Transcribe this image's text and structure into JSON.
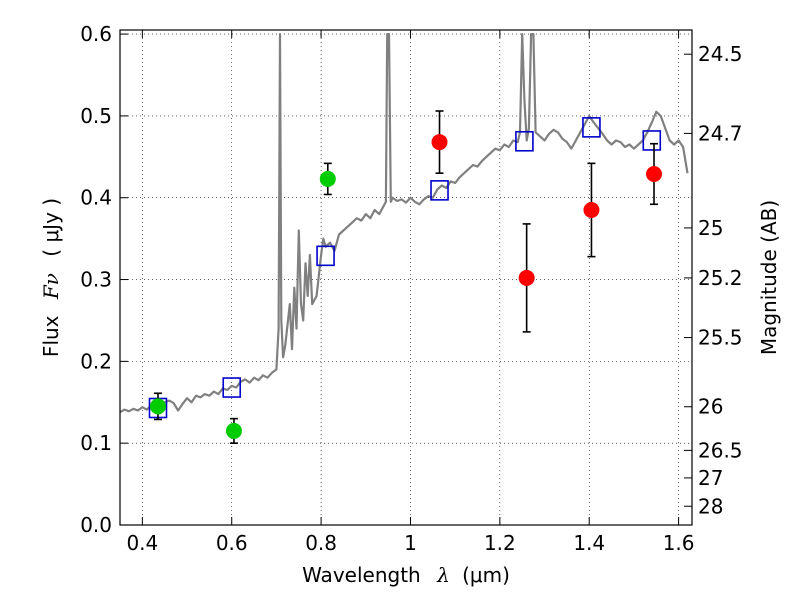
{
  "chart_data": {
    "type": "scatter",
    "xlabel_text": "Wavelength",
    "xlabel_symbol": "λ",
    "xlabel_unit": "(μm)",
    "ylabel_text": "Flux",
    "ylabel_symbol": "Fν",
    "ylabel_unit": "( μJy )",
    "y2label": "Magnitude (AB)",
    "xlim": [
      0.35,
      1.63
    ],
    "ylim": [
      0.0,
      0.605
    ],
    "grid": true,
    "x_ticks": [
      {
        "value": 0.4,
        "label": "0.4"
      },
      {
        "value": 0.6,
        "label": "0.6"
      },
      {
        "value": 0.8,
        "label": "0.8"
      },
      {
        "value": 1.0,
        "label": "1"
      },
      {
        "value": 1.2,
        "label": "1.2"
      },
      {
        "value": 1.4,
        "label": "1.4"
      },
      {
        "value": 1.6,
        "label": "1.6"
      }
    ],
    "y_ticks": [
      {
        "value": 0.0,
        "label": "0.0"
      },
      {
        "value": 0.1,
        "label": "0.1"
      },
      {
        "value": 0.2,
        "label": "0.2"
      },
      {
        "value": 0.3,
        "label": "0.3"
      },
      {
        "value": 0.4,
        "label": "0.4"
      },
      {
        "value": 0.5,
        "label": "0.5"
      },
      {
        "value": 0.6,
        "label": "0.6"
      }
    ],
    "mag_ticks": [
      {
        "value": 24.5,
        "label": "24.5"
      },
      {
        "value": 24.7,
        "label": "24.7"
      },
      {
        "value": 25,
        "label": "25"
      },
      {
        "value": 25.2,
        "label": "25.2"
      },
      {
        "value": 25.5,
        "label": "25.5"
      },
      {
        "value": 26,
        "label": "26"
      },
      {
        "value": 26.5,
        "label": "26.5"
      },
      {
        "value": 27,
        "label": "27"
      },
      {
        "value": 28,
        "label": "28"
      }
    ],
    "series": [
      {
        "kind": "model_spectrum",
        "color": "#808080",
        "points": [
          [
            0.35,
            0.138
          ],
          [
            0.36,
            0.141
          ],
          [
            0.37,
            0.139
          ],
          [
            0.38,
            0.142
          ],
          [
            0.39,
            0.14
          ],
          [
            0.4,
            0.144
          ],
          [
            0.41,
            0.141
          ],
          [
            0.42,
            0.146
          ],
          [
            0.43,
            0.148
          ],
          [
            0.44,
            0.145
          ],
          [
            0.45,
            0.15
          ],
          [
            0.46,
            0.152
          ],
          [
            0.47,
            0.149
          ],
          [
            0.48,
            0.14
          ],
          [
            0.49,
            0.148
          ],
          [
            0.5,
            0.155
          ],
          [
            0.51,
            0.15
          ],
          [
            0.52,
            0.158
          ],
          [
            0.53,
            0.156
          ],
          [
            0.54,
            0.16
          ],
          [
            0.55,
            0.158
          ],
          [
            0.56,
            0.163
          ],
          [
            0.57,
            0.16
          ],
          [
            0.58,
            0.167
          ],
          [
            0.59,
            0.165
          ],
          [
            0.6,
            0.17
          ],
          [
            0.61,
            0.168
          ],
          [
            0.62,
            0.175
          ],
          [
            0.63,
            0.178
          ],
          [
            0.64,
            0.174
          ],
          [
            0.65,
            0.18
          ],
          [
            0.66,
            0.177
          ],
          [
            0.67,
            0.183
          ],
          [
            0.68,
            0.18
          ],
          [
            0.69,
            0.186
          ],
          [
            0.7,
            0.19
          ],
          [
            0.705,
            0.24
          ],
          [
            0.708,
            0.6
          ],
          [
            0.711,
            0.25
          ],
          [
            0.715,
            0.205
          ],
          [
            0.72,
            0.22
          ],
          [
            0.73,
            0.27
          ],
          [
            0.735,
            0.215
          ],
          [
            0.74,
            0.29
          ],
          [
            0.745,
            0.24
          ],
          [
            0.75,
            0.36
          ],
          [
            0.755,
            0.27
          ],
          [
            0.76,
            0.25
          ],
          [
            0.765,
            0.32
          ],
          [
            0.77,
            0.28
          ],
          [
            0.775,
            0.33
          ],
          [
            0.78,
            0.27
          ],
          [
            0.79,
            0.28
          ],
          [
            0.8,
            0.33
          ],
          [
            0.805,
            0.35
          ],
          [
            0.81,
            0.34
          ],
          [
            0.82,
            0.345
          ],
          [
            0.83,
            0.335
          ],
          [
            0.84,
            0.355
          ],
          [
            0.85,
            0.36
          ],
          [
            0.86,
            0.365
          ],
          [
            0.87,
            0.37
          ],
          [
            0.88,
            0.375
          ],
          [
            0.89,
            0.372
          ],
          [
            0.9,
            0.38
          ],
          [
            0.91,
            0.375
          ],
          [
            0.92,
            0.385
          ],
          [
            0.93,
            0.38
          ],
          [
            0.94,
            0.39
          ],
          [
            0.945,
            0.395
          ],
          [
            0.948,
            0.6
          ],
          [
            0.952,
            0.6
          ],
          [
            0.956,
            0.395
          ],
          [
            0.96,
            0.4
          ],
          [
            0.97,
            0.396
          ],
          [
            0.98,
            0.398
          ],
          [
            0.99,
            0.394
          ],
          [
            1.0,
            0.4
          ],
          [
            1.01,
            0.395
          ],
          [
            1.02,
            0.392
          ],
          [
            1.03,
            0.398
          ],
          [
            1.04,
            0.402
          ],
          [
            1.05,
            0.4
          ],
          [
            1.06,
            0.41
          ],
          [
            1.07,
            0.415
          ],
          [
            1.08,
            0.412
          ],
          [
            1.09,
            0.42
          ],
          [
            1.1,
            0.418
          ],
          [
            1.11,
            0.425
          ],
          [
            1.12,
            0.43
          ],
          [
            1.13,
            0.435
          ],
          [
            1.14,
            0.44
          ],
          [
            1.15,
            0.438
          ],
          [
            1.16,
            0.445
          ],
          [
            1.17,
            0.45
          ],
          [
            1.18,
            0.455
          ],
          [
            1.19,
            0.46
          ],
          [
            1.2,
            0.458
          ],
          [
            1.21,
            0.465
          ],
          [
            1.22,
            0.462
          ],
          [
            1.23,
            0.47
          ],
          [
            1.24,
            0.468
          ],
          [
            1.245,
            0.48
          ],
          [
            1.25,
            0.6
          ],
          [
            1.255,
            0.52
          ],
          [
            1.26,
            0.47
          ],
          [
            1.265,
            0.485
          ],
          [
            1.27,
            0.6
          ],
          [
            1.275,
            0.6
          ],
          [
            1.28,
            0.48
          ],
          [
            1.29,
            0.475
          ],
          [
            1.3,
            0.47
          ],
          [
            1.31,
            0.478
          ],
          [
            1.32,
            0.483
          ],
          [
            1.33,
            0.48
          ],
          [
            1.34,
            0.472
          ],
          [
            1.35,
            0.468
          ],
          [
            1.36,
            0.46
          ],
          [
            1.37,
            0.47
          ],
          [
            1.38,
            0.48
          ],
          [
            1.39,
            0.49
          ],
          [
            1.4,
            0.5
          ],
          [
            1.41,
            0.492
          ],
          [
            1.42,
            0.485
          ],
          [
            1.43,
            0.478
          ],
          [
            1.44,
            0.47
          ],
          [
            1.45,
            0.465
          ],
          [
            1.46,
            0.47
          ],
          [
            1.47,
            0.468
          ],
          [
            1.48,
            0.462
          ],
          [
            1.49,
            0.465
          ],
          [
            1.5,
            0.46
          ],
          [
            1.51,
            0.465
          ],
          [
            1.52,
            0.47
          ],
          [
            1.53,
            0.48
          ],
          [
            1.54,
            0.492
          ],
          [
            1.55,
            0.505
          ],
          [
            1.56,
            0.5
          ],
          [
            1.57,
            0.485
          ],
          [
            1.58,
            0.47
          ],
          [
            1.59,
            0.465
          ],
          [
            1.6,
            0.47
          ],
          [
            1.61,
            0.462
          ],
          [
            1.62,
            0.43
          ]
        ]
      },
      {
        "kind": "model_bands",
        "color": "#0000cc",
        "points": [
          [
            0.435,
            0.143
          ],
          [
            0.6,
            0.168
          ],
          [
            0.81,
            0.329
          ],
          [
            1.065,
            0.409
          ],
          [
            1.255,
            0.469
          ],
          [
            1.405,
            0.486
          ],
          [
            1.54,
            0.47
          ]
        ]
      },
      {
        "kind": "observed_optical",
        "color": "#00cc00",
        "points": [
          [
            0.435,
            0.145,
            0.016
          ],
          [
            0.605,
            0.115,
            0.015
          ],
          [
            0.815,
            0.423,
            0.019
          ]
        ]
      },
      {
        "kind": "observed_nir",
        "color": "#ff0000",
        "points": [
          [
            1.065,
            0.468,
            0.038
          ],
          [
            1.26,
            0.302,
            0.066
          ],
          [
            1.405,
            0.385,
            0.057
          ],
          [
            1.545,
            0.429,
            0.037
          ]
        ]
      }
    ]
  }
}
